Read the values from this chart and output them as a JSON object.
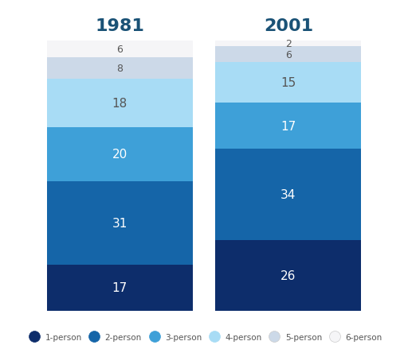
{
  "title_1981": "1981",
  "title_2001": "2001",
  "title_color": "#1a5276",
  "categories": [
    "1-person",
    "2-person",
    "3-person",
    "4-person",
    "5-person",
    "6-person"
  ],
  "colors_from_bottom": [
    "#0d2d6b",
    "#1565a8",
    "#3ea0d8",
    "#a8dcf5",
    "#ccd9e8",
    "#f5f5f7"
  ],
  "values_1981": [
    17,
    31,
    20,
    18,
    8,
    6
  ],
  "values_2001": [
    26,
    34,
    17,
    15,
    6,
    2
  ],
  "bg_color": "#ffffff",
  "text_color_white": "#ffffff",
  "text_color_dark": "#555555",
  "text_color_mid": "#aaaaaa"
}
